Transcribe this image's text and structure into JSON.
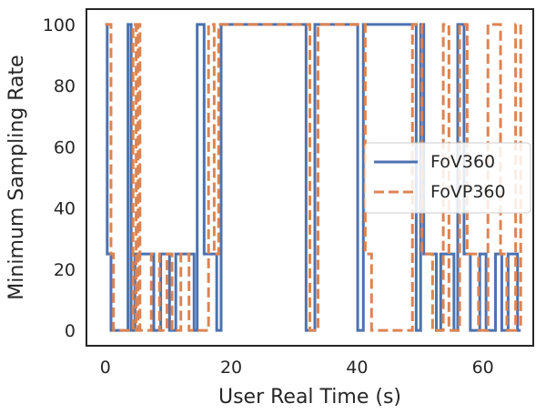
{
  "chart_data": {
    "type": "line",
    "title": "",
    "xlabel": "User Real Time (s)",
    "ylabel": "Minimum Sampling Rate",
    "xlim": [
      -3,
      68
    ],
    "ylim": [
      -5,
      105
    ],
    "xticks": [
      0,
      20,
      40,
      60
    ],
    "yticks": [
      0,
      20,
      40,
      60,
      80,
      100
    ],
    "grid": false,
    "legend_position": "center-right",
    "series": [
      {
        "name": "FoV360",
        "color": "#4c72b0",
        "style": "solid",
        "x": [
          0,
          0.3,
          0.9,
          3.6,
          4.1,
          4.7,
          7.7,
          8.8,
          10.2,
          11.2,
          14.1,
          14.6,
          15.7,
          17.7,
          18.4,
          31.9,
          33.3,
          40.1,
          41.0,
          49.4,
          50.1,
          50.6,
          52.6,
          53.3,
          55.4,
          56.0,
          57.0,
          58.0,
          59.5,
          60.5,
          62.0,
          63.0,
          64.0,
          65.5,
          66.0
        ],
        "y": [
          100,
          25,
          0,
          100,
          0,
          25,
          0,
          25,
          0,
          25,
          0,
          100,
          25,
          0,
          100,
          0,
          100,
          0,
          100,
          0,
          100,
          25,
          0,
          25,
          0,
          100,
          25,
          0,
          25,
          0,
          25,
          0,
          25,
          0,
          0
        ]
      },
      {
        "name": "FoVP360",
        "color": "#dd8452",
        "style": "dashed",
        "x": [
          0,
          0.9,
          1.3,
          4.4,
          4.9,
          5.2,
          5.5,
          7.3,
          8.6,
          9.8,
          10.6,
          12.0,
          13.3,
          16.4,
          17.3,
          18.0,
          32.5,
          33.8,
          41.3,
          42.3,
          48.8,
          50.3,
          52.0,
          53.7,
          54.6,
          56.3,
          57.5,
          59.3,
          60.8,
          62.8,
          63.8,
          65.2,
          66.0
        ],
        "y": [
          100,
          25,
          0,
          100,
          0,
          100,
          0,
          25,
          0,
          25,
          0,
          25,
          0,
          100,
          25,
          100,
          0,
          100,
          25,
          0,
          100,
          25,
          0,
          100,
          0,
          100,
          25,
          0,
          100,
          25,
          0,
          100,
          0
        ]
      }
    ]
  }
}
